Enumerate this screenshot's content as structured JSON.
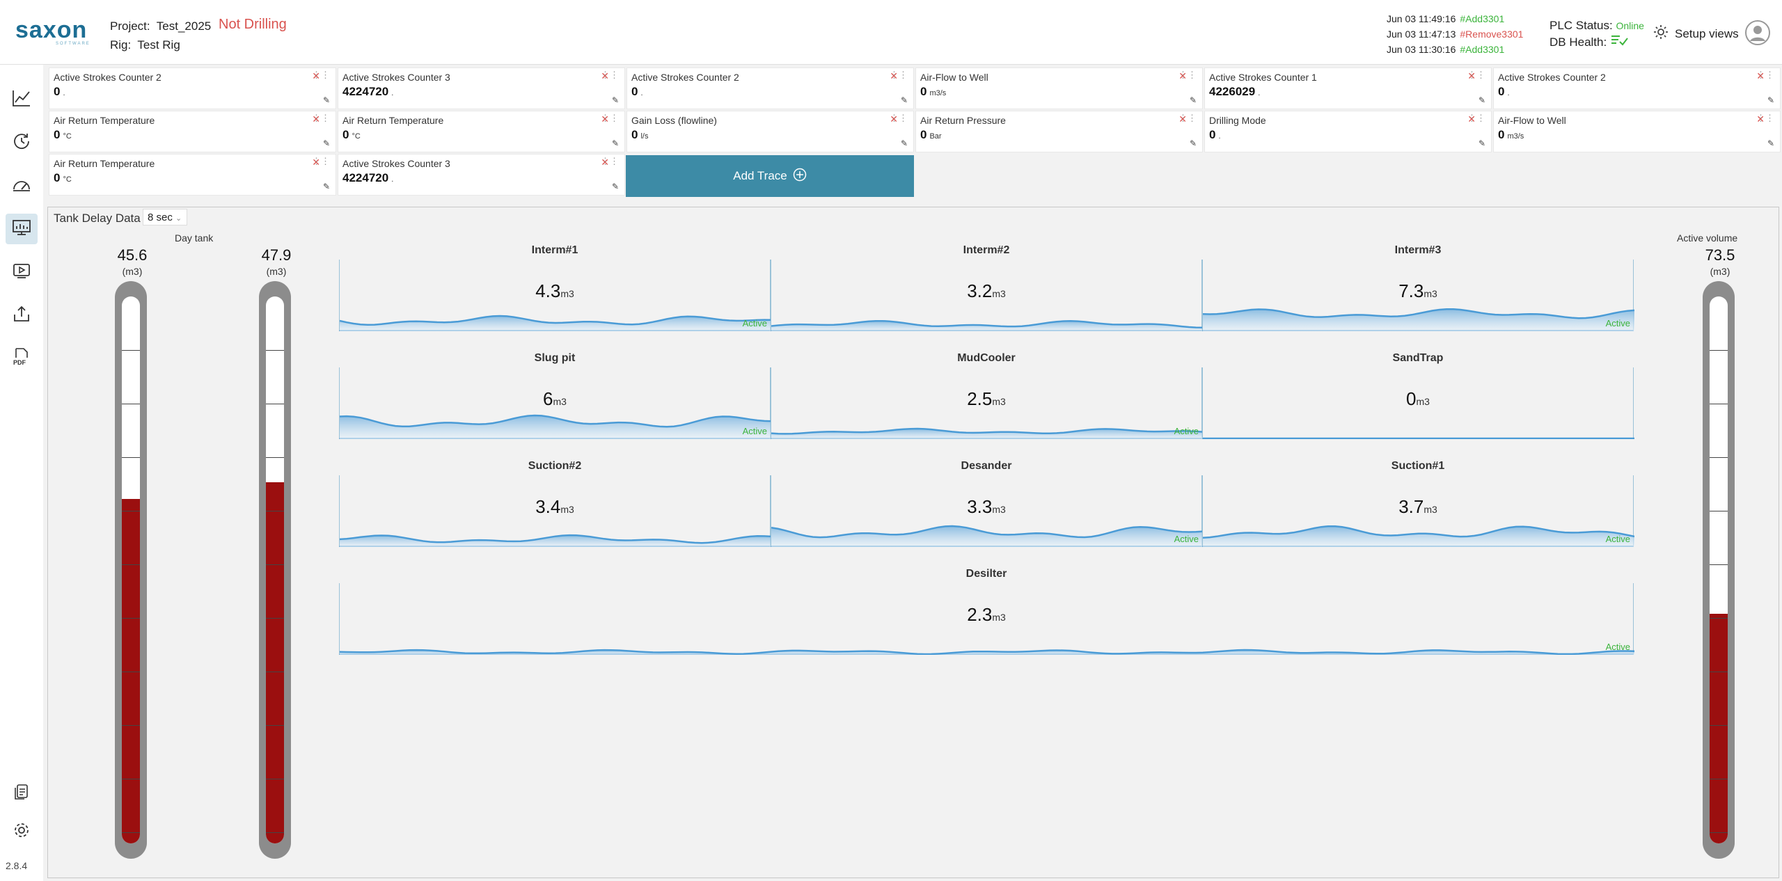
{
  "header": {
    "logo": "saxon",
    "logo_sub": "SOFTWARE",
    "project_label": "Project:",
    "project": "Test_2025",
    "rig_label": "Rig:",
    "rig": "Test Rig",
    "drilling_state": "Not Drilling",
    "logs": [
      {
        "time": "Jun 03 11:49:16",
        "tag": "#Add3301",
        "color": "#3cb43c"
      },
      {
        "time": "Jun 03 11:47:13",
        "tag": "#Remove3301",
        "color": "#d9534f"
      },
      {
        "time": "Jun 03 11:30:16",
        "tag": "#Add3301",
        "color": "#3cb43c"
      }
    ],
    "plc_label": "PLC Status:",
    "plc_status": "Online",
    "db_label": "DB Health:",
    "setup_label": "Setup views"
  },
  "sidebar": {
    "items": [
      {
        "icon": "line-chart-icon"
      },
      {
        "icon": "history-icon"
      },
      {
        "icon": "gauge-icon"
      },
      {
        "icon": "tank-display-icon",
        "active": true
      },
      {
        "icon": "video-icon"
      },
      {
        "icon": "export-icon"
      },
      {
        "icon": "pdf-icon"
      }
    ],
    "version": "2.8.4"
  },
  "traces": [
    {
      "label": "Active Strokes Counter 2",
      "value": "0",
      "unit": "."
    },
    {
      "label": "Active Strokes Counter 3",
      "value": "4224720",
      "unit": "."
    },
    {
      "label": "Active Strokes Counter 2",
      "value": "0",
      "unit": "."
    },
    {
      "label": "Air-Flow to Well",
      "value": "0",
      "unit": "m3/s"
    },
    {
      "label": "Active Strokes Counter 1",
      "value": "4226029",
      "unit": "."
    },
    {
      "label": "Active Strokes Counter 2",
      "value": "0",
      "unit": "."
    },
    {
      "label": "Air Return Temperature",
      "value": "0",
      "unit": "°C"
    },
    {
      "label": "Air Return Temperature",
      "value": "0",
      "unit": "°C"
    },
    {
      "label": "Gain Loss (flowline)",
      "value": "0",
      "unit": "l/s"
    },
    {
      "label": "Air Return Pressure",
      "value": "0",
      "unit": "Bar"
    },
    {
      "label": "Drilling Mode",
      "value": "0",
      "unit": "."
    },
    {
      "label": "Air-Flow to Well",
      "value": "0",
      "unit": "m3/s"
    },
    {
      "label": "Air Return Temperature",
      "value": "0",
      "unit": "°C"
    },
    {
      "label": "Active Strokes Counter 3",
      "value": "4224720",
      "unit": "."
    }
  ],
  "add_trace_label": "Add Trace",
  "panel": {
    "title": "Tank Delay Data",
    "interval": "8 sec",
    "big_tanks": [
      {
        "name": "",
        "value": "45.6",
        "unit": "(m3)",
        "level": 0.63
      },
      {
        "name": "Day tank",
        "value": "47.9",
        "unit": "(m3)",
        "level": 0.66
      },
      {
        "name": "Active volume",
        "value": "73.5",
        "unit": "(m3)",
        "level": 0.42
      }
    ],
    "tanks": [
      {
        "name": "Interm#1",
        "value": "4.3",
        "unit": "m3",
        "status": "Active"
      },
      {
        "name": "Interm#2",
        "value": "3.2",
        "unit": "m3",
        "status": ""
      },
      {
        "name": "Interm#3",
        "value": "7.3",
        "unit": "m3",
        "status": "Active"
      },
      {
        "name": "Slug pit",
        "value": "6",
        "unit": "m3",
        "status": "Active"
      },
      {
        "name": "MudCooler",
        "value": "2.5",
        "unit": "m3",
        "status": "Active"
      },
      {
        "name": "SandTrap",
        "value": "0",
        "unit": "m3",
        "status": ""
      },
      {
        "name": "Suction#2",
        "value": "3.4",
        "unit": "m3",
        "status": ""
      },
      {
        "name": "Desander",
        "value": "3.3",
        "unit": "m3",
        "status": "Active"
      },
      {
        "name": "Suction#1",
        "value": "3.7",
        "unit": "m3",
        "status": "Active"
      },
      {
        "name": "Desilter",
        "value": "2.3",
        "unit": "m3",
        "status": "Active"
      }
    ]
  },
  "colors": {
    "accent": "#3d8ba6",
    "alarm": "#d9534f",
    "ok": "#3cb43c",
    "tank_fill": "#9b0f0f",
    "wave": "#4a9bd6"
  }
}
